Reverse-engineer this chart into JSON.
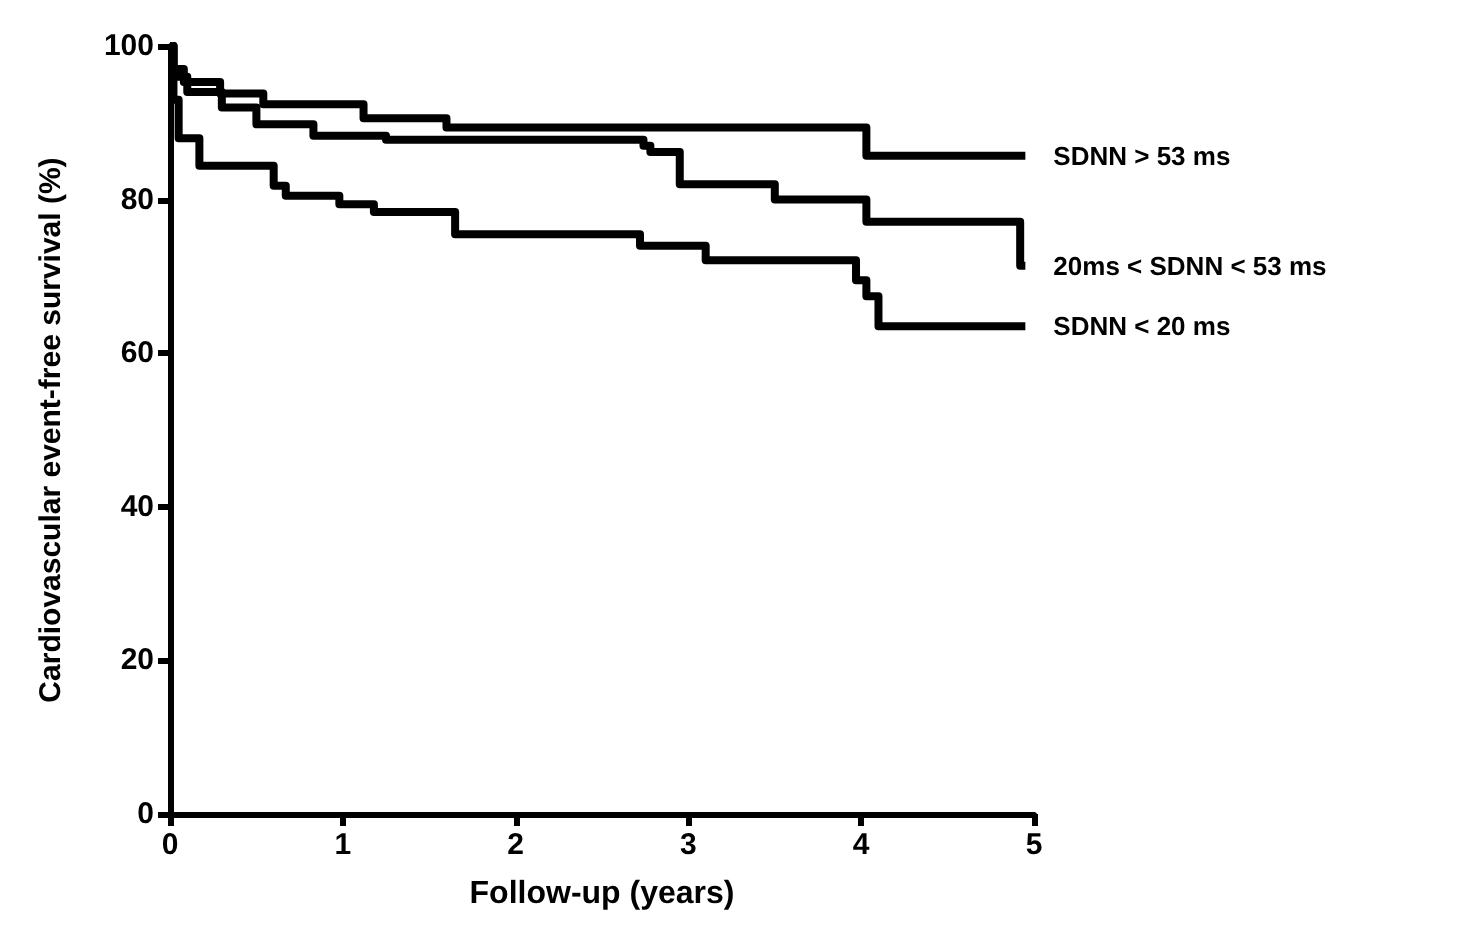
{
  "chart_data": {
    "type": "step",
    "xlabel": "Follow-up (years)",
    "ylabel": "Cardiovascular event-free survival (%)",
    "xlim": [
      0,
      5
    ],
    "xticks": [
      0,
      1,
      2,
      3,
      4,
      5
    ],
    "ylim": [
      0,
      100
    ],
    "yticks": [
      0,
      20,
      40,
      60,
      80,
      100
    ],
    "grid": false,
    "legend": false,
    "marker": "none",
    "line_style": "solid",
    "series": [
      {
        "name": "SDNN > 53 ms",
        "color": "#000000",
        "x": [
          0,
          0.02,
          0.08,
          0.29,
          0.54,
          1.12,
          1.6,
          4.03,
          4.95
        ],
        "values": [
          100,
          97,
          95.3,
          93.8,
          92.4,
          90.6,
          89.4,
          85.7,
          85.7
        ]
      },
      {
        "name": "20ms < SDNN < 53 ms",
        "color": "#000000",
        "x": [
          0,
          0.02,
          0.1,
          0.3,
          0.5,
          0.83,
          1.25,
          2.74,
          2.78,
          2.95,
          3.5,
          4.03,
          4.92,
          4.95
        ],
        "values": [
          100,
          96,
          94,
          92,
          89.8,
          88.3,
          87.8,
          87,
          86.2,
          82,
          80,
          77.1,
          71.4,
          71.4
        ]
      },
      {
        "name": "SDNN < 20 ms",
        "color": "#000000",
        "x": [
          0,
          0.02,
          0.05,
          0.17,
          0.54,
          0.6,
          0.67,
          0.98,
          1.18,
          1.65,
          2.72,
          3.1,
          3.97,
          4.03,
          4.1,
          4.95
        ],
        "values": [
          100,
          93,
          88,
          84.4,
          84.4,
          81.8,
          80.5,
          79.4,
          78.4,
          75.5,
          74,
          72.1,
          69.5,
          67.4,
          63.5,
          63.5
        ]
      }
    ]
  }
}
